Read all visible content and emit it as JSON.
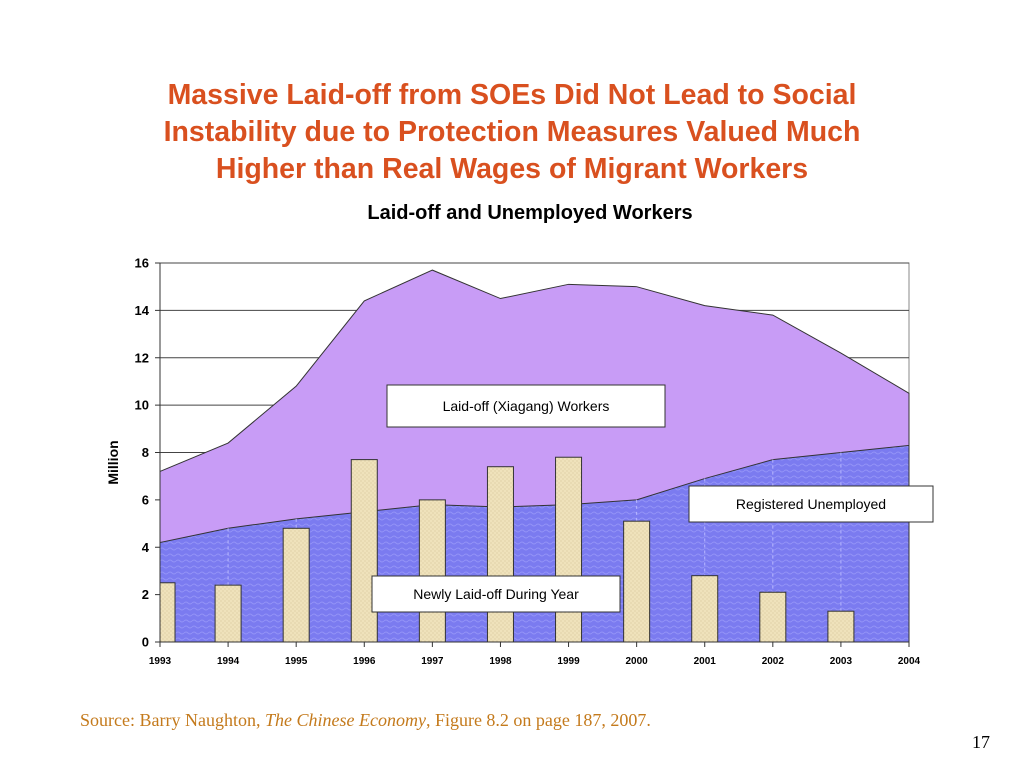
{
  "slide": {
    "title_lines": [
      "Massive Laid-off from SOEs Did Not Lead to Social",
      "Instability due to Protection Measures Valued Much",
      "Higher than Real Wages of Migrant Workers"
    ],
    "source_prefix": "Source: Barry Naughton, ",
    "source_title": "The Chinese Economy",
    "source_suffix": ", Figure 8.2 on page 187, 2007.",
    "page_number": "17"
  },
  "chart_data": {
    "type": "area",
    "title": "Laid-off and Unemployed Workers",
    "ylabel": "Million",
    "xlabel": "",
    "ylim": [
      0,
      16
    ],
    "yticks": [
      0,
      2,
      4,
      6,
      8,
      10,
      12,
      14,
      16
    ],
    "categories": [
      "1993",
      "1994",
      "1995",
      "1996",
      "1997",
      "1998",
      "1999",
      "2000",
      "2001",
      "2002",
      "2003",
      "2004"
    ],
    "series": [
      {
        "name": "Registered Unemployed",
        "kind": "area",
        "color": "#7b7bf0",
        "values": [
          4.2,
          4.8,
          5.2,
          5.5,
          5.8,
          5.7,
          5.8,
          6.0,
          6.9,
          7.7,
          8.0,
          8.3
        ]
      },
      {
        "name": "Laid-off (Xiagang) Workers",
        "kind": "area-stacked-total",
        "color": "#c89cf6",
        "values": [
          7.2,
          8.4,
          10.8,
          14.4,
          15.7,
          14.5,
          15.1,
          15.0,
          14.2,
          13.8,
          12.2,
          10.5
        ]
      },
      {
        "name": "Newly Laid-off During Year",
        "kind": "bar",
        "color": "#efe2bb",
        "values": [
          2.5,
          2.4,
          4.8,
          7.7,
          6.0,
          7.4,
          7.8,
          5.1,
          2.8,
          2.1,
          1.3,
          null
        ]
      }
    ],
    "annotations": [
      "Laid-off (Xiagang) Workers",
      "Registered Unemployed",
      "Newly Laid-off During Year"
    ],
    "grid": true
  }
}
